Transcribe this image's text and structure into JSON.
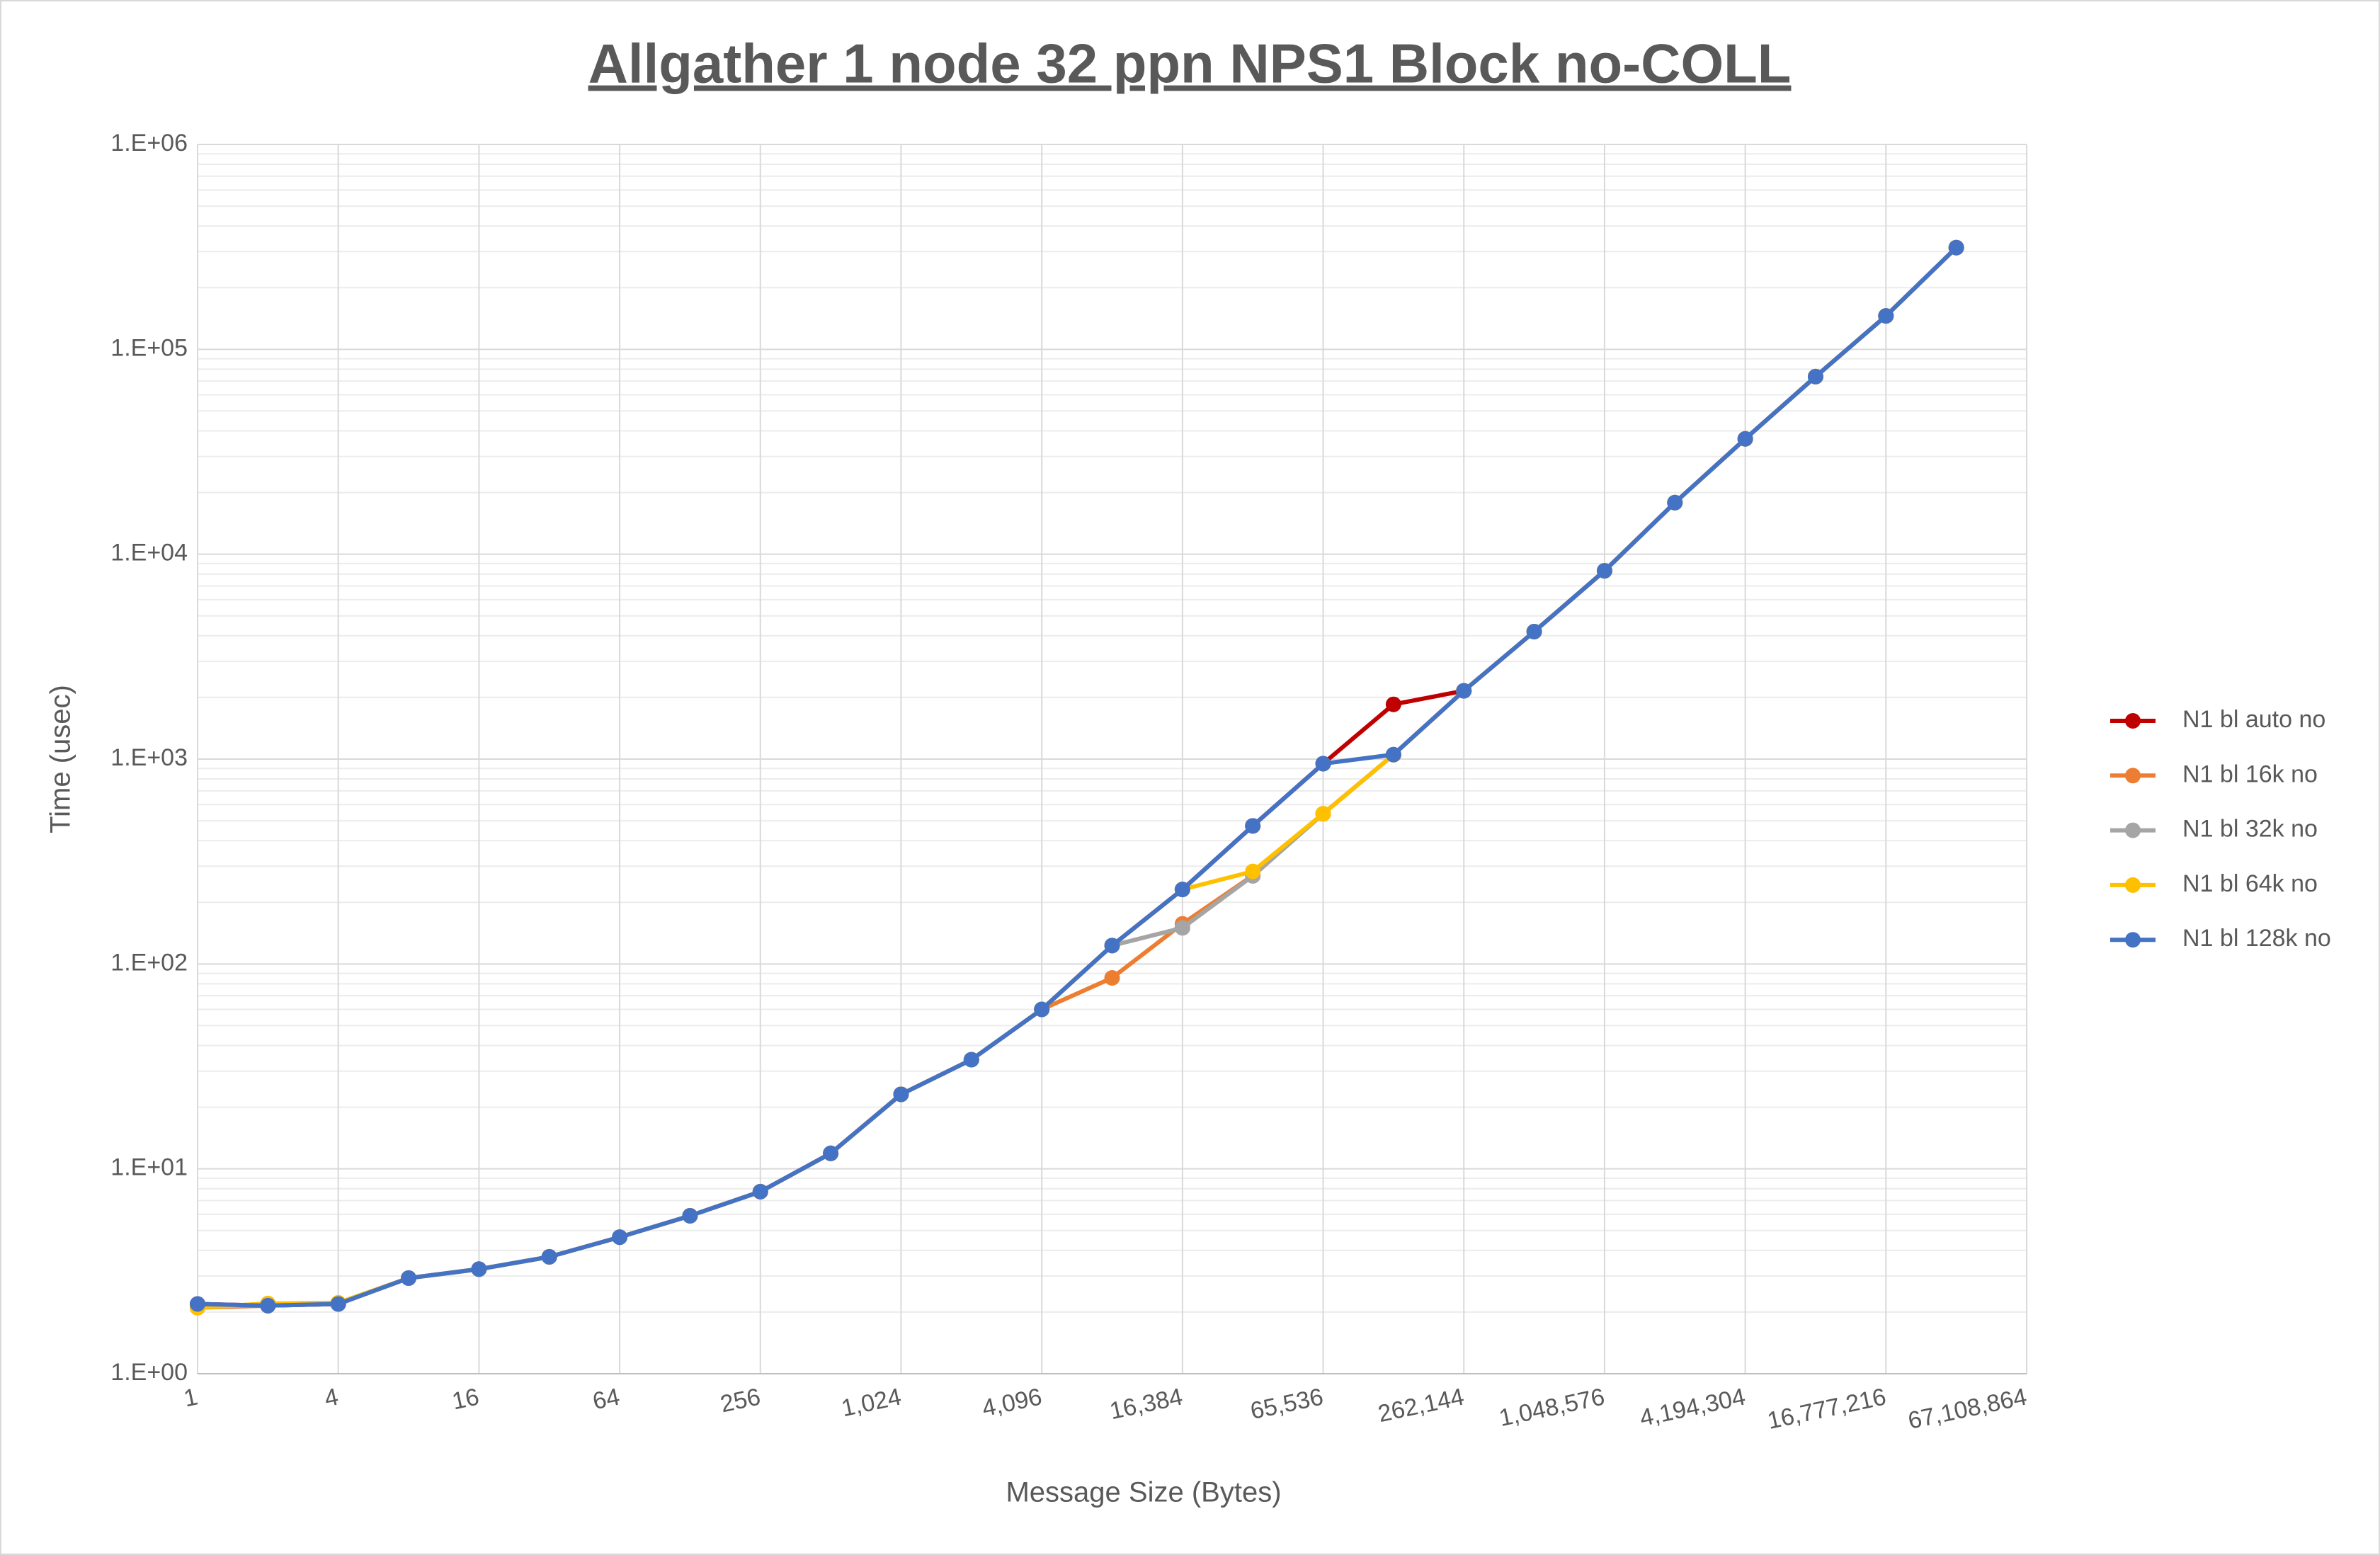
{
  "chart_data": {
    "type": "line",
    "title": "Allgather 1 node 32 ppn NPS1 Block no-COLL",
    "x_label": "Message Size (Bytes)",
    "y_label": "Time (usec)",
    "x": [
      1,
      2,
      4,
      8,
      16,
      32,
      64,
      128,
      256,
      512,
      1024,
      2048,
      4096,
      8192,
      16384,
      32768,
      65536,
      131072,
      262144,
      524288,
      1048576,
      2097152,
      4194304,
      8388608,
      16777216,
      33554432
    ],
    "series": [
      {
        "name": "N1 bl auto no",
        "color": "#c00000",
        "values": [
          2.19,
          2.15,
          2.19,
          2.93,
          3.24,
          3.72,
          4.64,
          5.9,
          7.74,
          11.9,
          23.1,
          34.1,
          60,
          123,
          231,
          472,
          950,
          1850,
          2154,
          4190,
          8300,
          17860,
          36560,
          73600,
          145600,
          313600
        ]
      },
      {
        "name": "N1 bl 16k no",
        "color": "#ed7d31",
        "values": [
          2.1,
          2.15,
          2.19,
          2.93,
          3.24,
          3.72,
          4.64,
          5.9,
          7.74,
          11.9,
          23.1,
          34.1,
          60,
          85.5,
          157,
          270,
          541,
          1050,
          2154,
          4190,
          8300,
          17860,
          36560,
          73600,
          145600,
          313600
        ]
      },
      {
        "name": "N1 bl 32k no",
        "color": "#a5a5a5",
        "values": [
          2.1,
          2.2,
          2.19,
          2.93,
          3.24,
          3.72,
          4.64,
          5.9,
          7.74,
          11.9,
          23.1,
          34.1,
          60,
          123,
          150,
          269,
          541,
          1050,
          2154,
          4190,
          8300,
          17860,
          36560,
          73600,
          145600,
          313600
        ]
      },
      {
        "name": "N1 bl 64k no",
        "color": "#ffc000",
        "values": [
          2.1,
          2.2,
          2.22,
          2.93,
          3.24,
          3.72,
          4.64,
          5.9,
          7.74,
          11.9,
          23.1,
          34.1,
          60,
          123,
          231,
          283,
          541,
          1050,
          2154,
          4190,
          8300,
          17860,
          36560,
          73600,
          145600,
          313600
        ]
      },
      {
        "name": "N1 bl 128k no",
        "color": "#4472c4",
        "values": [
          2.19,
          2.15,
          2.19,
          2.93,
          3.24,
          3.72,
          4.64,
          5.9,
          7.74,
          11.9,
          23.1,
          34.1,
          60,
          123,
          231,
          472,
          950,
          1052,
          2154,
          4190,
          8300,
          17860,
          36560,
          73600,
          145600,
          313600
        ]
      }
    ],
    "x_log_base": 2,
    "y_log_base": 10,
    "xlim": [
      1,
      67108864
    ],
    "xticks": [
      1,
      4,
      16,
      64,
      256,
      {
        "value": 1024,
        "label": "1,024"
      },
      {
        "value": 4096,
        "label": "4,096"
      },
      {
        "value": 16384,
        "label": "16,384"
      },
      {
        "value": 65536,
        "label": "65,536"
      },
      {
        "value": 262144,
        "label": "262,144"
      },
      {
        "value": 1048576,
        "label": "1,048,576"
      },
      {
        "value": 4194304,
        "label": "4,194,304"
      },
      {
        "value": 16777216,
        "label": "16,777,216"
      },
      {
        "value": 67108864,
        "label": "67,108,864"
      }
    ],
    "ylim": [
      1,
      1000000
    ],
    "yticks": [
      {
        "value": 1,
        "label": "1.E+00"
      },
      {
        "value": 10,
        "label": "1.E+01"
      },
      {
        "value": 100,
        "label": "1.E+02"
      },
      {
        "value": 1000,
        "label": "1.E+03"
      },
      {
        "value": 10000,
        "label": "1.E+04"
      },
      {
        "value": 100000,
        "label": "1.E+05"
      },
      {
        "value": 1000000,
        "label": "1.E+06"
      }
    ],
    "grid": true,
    "minor_grid": true,
    "legend": "right"
  }
}
